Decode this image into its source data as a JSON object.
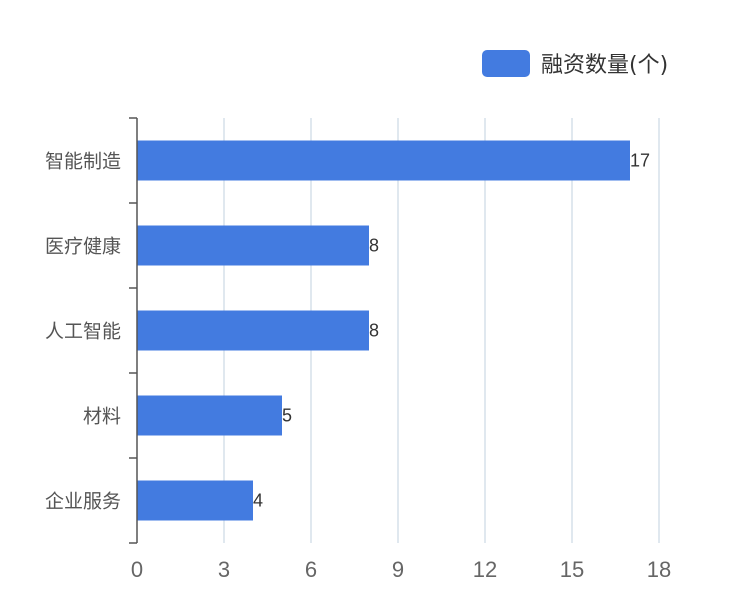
{
  "chart_data": {
    "type": "bar",
    "orientation": "horizontal",
    "categories": [
      "智能制造",
      "医疗健康",
      "人工智能",
      "材料",
      "企业服务"
    ],
    "series": [
      {
        "name": "融资数量(个)",
        "values": [
          17,
          8,
          8,
          5,
          4
        ],
        "color": "#437be0"
      }
    ],
    "x_ticks": [
      0,
      3,
      6,
      9,
      12,
      15,
      18
    ],
    "xlim": [
      0,
      18
    ],
    "grid": true,
    "grid_color": "#d6e0ea",
    "axis_color": "#555555",
    "data_labels": true,
    "legend_position": "top-right"
  }
}
